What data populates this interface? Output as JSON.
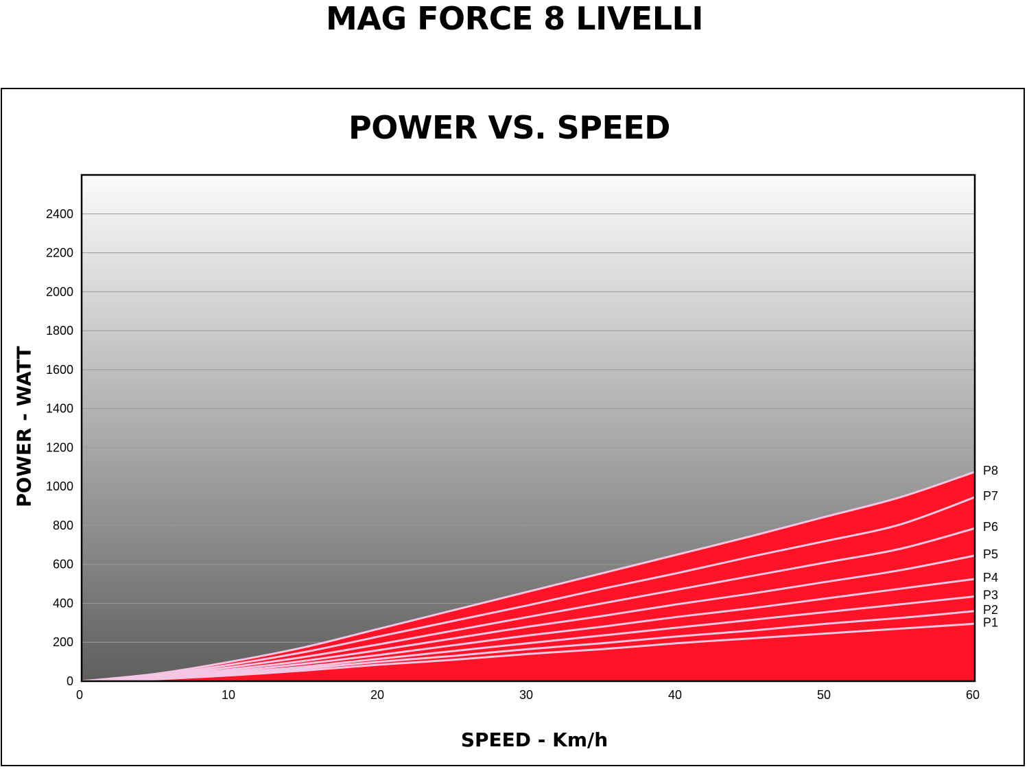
{
  "page": {
    "title": "MAG FORCE 8 LIVELLI"
  },
  "chart_data": {
    "type": "area",
    "title": "POWER VS. SPEED",
    "xlabel": "SPEED - Km/h",
    "ylabel": "POWER - WATT",
    "xlim": [
      0,
      60
    ],
    "ylim": [
      0,
      2600
    ],
    "x_ticks": [
      0,
      10,
      20,
      30,
      40,
      50,
      60
    ],
    "y_ticks": [
      0,
      200,
      400,
      600,
      800,
      1000,
      1200,
      1400,
      1600,
      1800,
      2000,
      2200,
      2400
    ],
    "grid": true,
    "legend": "series labels at right end of each line",
    "x": [
      0,
      5,
      10,
      15,
      20,
      25,
      30,
      35,
      40,
      45,
      50,
      55,
      60
    ],
    "series": [
      {
        "name": "P1",
        "values": [
          0,
          10,
          30,
          55,
          85,
          110,
          140,
          165,
          195,
          220,
          245,
          270,
          295
        ]
      },
      {
        "name": "P2",
        "values": [
          0,
          12,
          35,
          65,
          100,
          130,
          165,
          195,
          230,
          260,
          295,
          325,
          360
        ]
      },
      {
        "name": "P3",
        "values": [
          0,
          15,
          42,
          75,
          115,
          155,
          195,
          235,
          275,
          315,
          355,
          395,
          435
        ]
      },
      {
        "name": "P4",
        "values": [
          0,
          18,
          50,
          90,
          135,
          185,
          235,
          280,
          330,
          375,
          425,
          475,
          525
        ]
      },
      {
        "name": "P5",
        "values": [
          0,
          22,
          60,
          105,
          160,
          220,
          280,
          335,
          395,
          450,
          510,
          570,
          645
        ]
      },
      {
        "name": "P6",
        "values": [
          0,
          27,
          72,
          125,
          190,
          260,
          330,
          400,
          470,
          540,
          610,
          680,
          785
        ]
      },
      {
        "name": "P7",
        "values": [
          0,
          32,
          85,
          150,
          230,
          310,
          390,
          475,
          555,
          640,
          720,
          805,
          945
        ]
      },
      {
        "name": "P8",
        "values": [
          0,
          38,
          100,
          175,
          270,
          365,
          460,
          555,
          650,
          745,
          845,
          945,
          1075
        ]
      }
    ],
    "colors": {
      "fill": "#ff1427",
      "line": "#f4c6e4",
      "gradient_top": "#fbfbfb",
      "gradient_bottom": "#5e5e5e",
      "grid": "#9a9a9a"
    }
  }
}
